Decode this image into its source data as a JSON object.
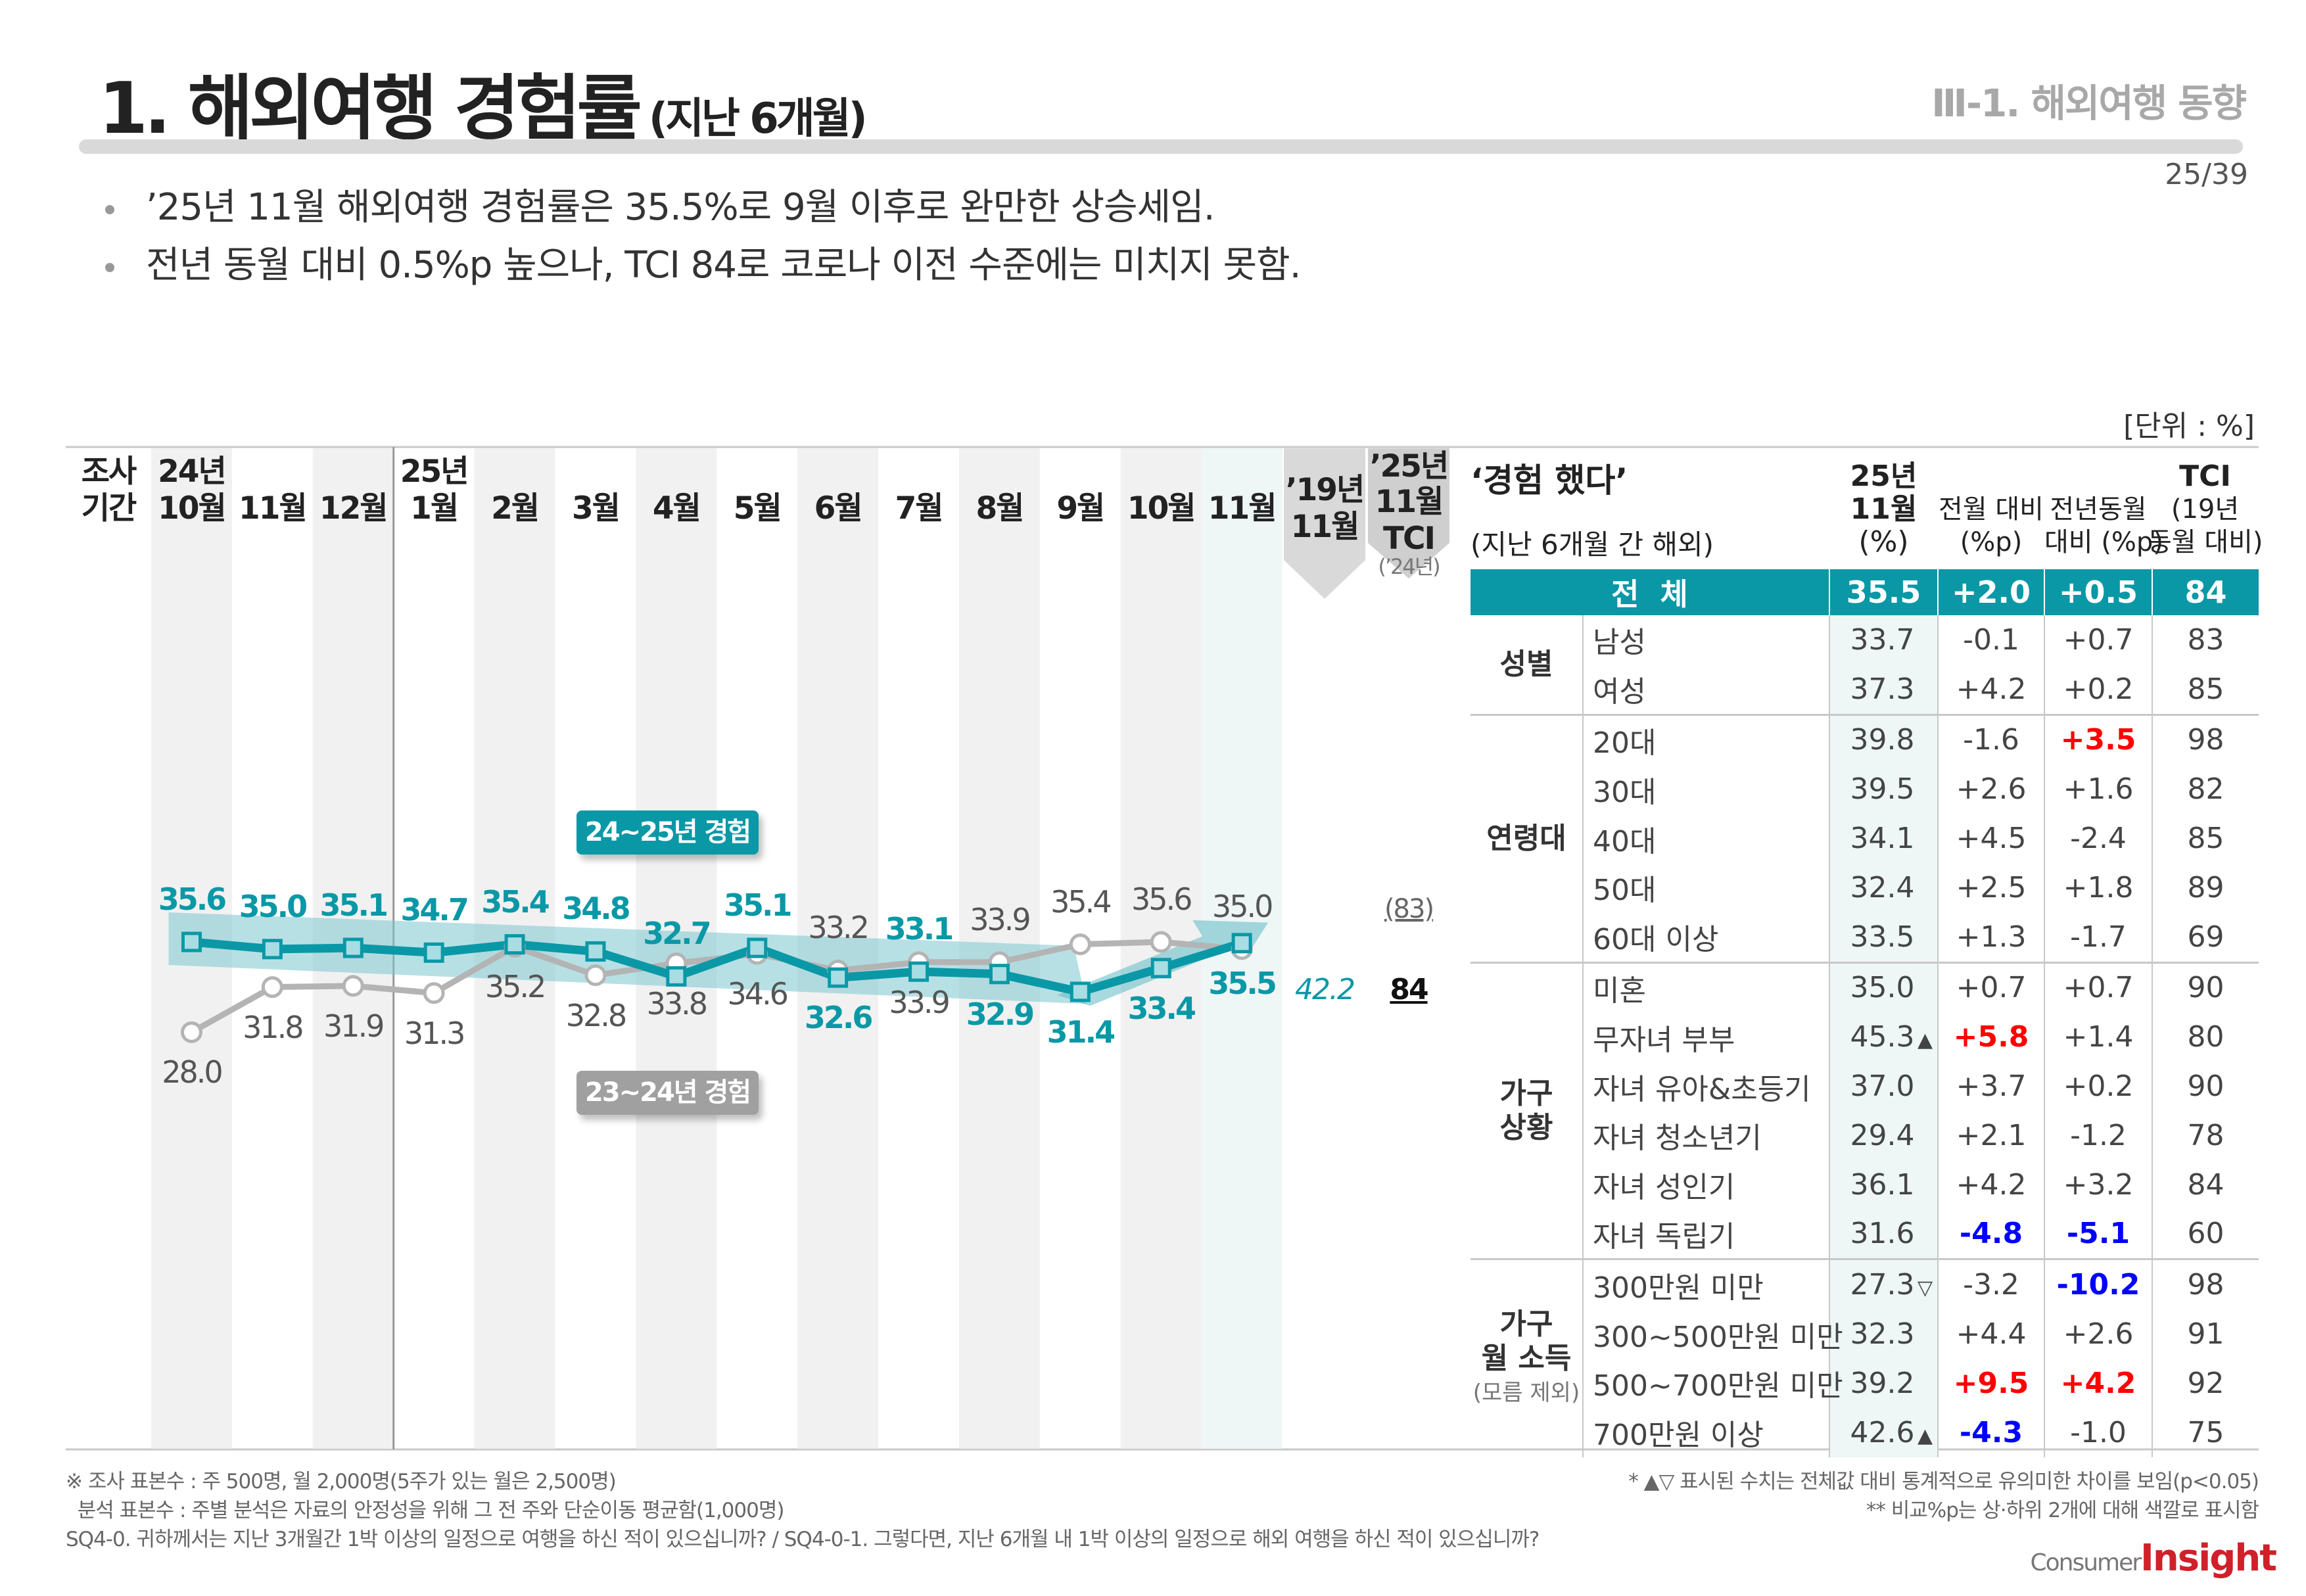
{
  "header": {
    "title": "1. 해외여행 경험률",
    "subtitle": "(지난 6개월)",
    "section": "Ⅲ-1. 해외여행 동향",
    "page": "25/39"
  },
  "bullets": [
    "’25년 11월 해외여행 경험률은 35.5%로 9월 이후로 완만한 상승세임.",
    "전년 동월 대비 0.5%p 높으나, TCI 84로 코로나 이전 수준에는 미치지 못함."
  ],
  "unit": "[단위 : %]",
  "chart_data": {
    "type": "line",
    "period_label": [
      "조사",
      "기간"
    ],
    "categories": [
      {
        "year": "24년",
        "month": "10월"
      },
      {
        "year": "",
        "month": "11월"
      },
      {
        "year": "",
        "month": "12월"
      },
      {
        "year": "25년",
        "month": "1월"
      },
      {
        "year": "",
        "month": "2월"
      },
      {
        "year": "",
        "month": "3월"
      },
      {
        "year": "",
        "month": "4월"
      },
      {
        "year": "",
        "month": "5월"
      },
      {
        "year": "",
        "month": "6월"
      },
      {
        "year": "",
        "month": "7월"
      },
      {
        "year": "",
        "month": "8월"
      },
      {
        "year": "",
        "month": "9월"
      },
      {
        "year": "",
        "month": "10월"
      },
      {
        "year": "",
        "month": "11월"
      }
    ],
    "series": [
      {
        "name": "24~25년 경험",
        "color": "#0a98a6",
        "values": [
          35.6,
          35.0,
          35.1,
          34.7,
          35.4,
          34.8,
          32.7,
          35.1,
          32.6,
          33.1,
          32.9,
          31.4,
          33.4,
          35.5
        ],
        "labels": [
          "35.6",
          "35.0",
          "35.1",
          "34.7",
          "35.4",
          "34.8",
          "32.7",
          "35.1",
          "32.6",
          "33.1",
          "32.9",
          "31.4",
          "33.4",
          "35.5"
        ]
      },
      {
        "name": "23~24년 경험",
        "color": "#b4b4b4",
        "values": [
          28.0,
          31.8,
          31.9,
          31.3,
          35.2,
          32.8,
          33.8,
          34.6,
          33.2,
          33.9,
          33.9,
          35.4,
          35.6,
          35.0
        ],
        "labels": [
          "28.0",
          "31.8",
          "31.9",
          "31.3",
          "35.2",
          "32.8",
          "33.8",
          "34.6",
          "33.2",
          "33.9",
          "33.9",
          "35.4",
          "35.6",
          "35.0"
        ]
      }
    ],
    "extra_columns": {
      "y19_nov": {
        "header": [
          "’19년",
          "11월"
        ],
        "value": "42.2"
      },
      "tci": {
        "header": [
          "’25년",
          "11월",
          "TCI"
        ],
        "sub": "(’24년)",
        "prev_value": "(83)",
        "value": "84"
      }
    }
  },
  "table": {
    "title": "‘경험 했다’",
    "subtitle": "(지난 6개월 간 해외)",
    "columns": {
      "pct": [
        "25년",
        "11월",
        "(%)"
      ],
      "mom": [
        "전월 대비",
        "(%p)"
      ],
      "yoy": [
        "전년동월",
        "대비 (%p)"
      ],
      "tci": [
        "TCI",
        "(19년",
        "동월 대비)"
      ]
    },
    "total": {
      "label": "전  체",
      "pct": "35.5",
      "mom": "+2.0",
      "yoy": "+0.5",
      "tci": "84"
    },
    "groups": [
      {
        "name": [
          "성별"
        ],
        "rows": [
          {
            "label": "남성",
            "pct": "33.7",
            "sig": "",
            "mom": "-0.1",
            "yoy": "+0.7",
            "tci": "83"
          },
          {
            "label": "여성",
            "pct": "37.3",
            "sig": "",
            "mom": "+4.2",
            "yoy": "+0.2",
            "tci": "85"
          }
        ]
      },
      {
        "name": [
          "연령대"
        ],
        "rows": [
          {
            "label": "20대",
            "pct": "39.8",
            "sig": "",
            "mom": "-1.6",
            "yoy": "+3.5",
            "tci": "98",
            "yoy_color": "#ff0000"
          },
          {
            "label": "30대",
            "pct": "39.5",
            "sig": "",
            "mom": "+2.6",
            "yoy": "+1.6",
            "tci": "82"
          },
          {
            "label": "40대",
            "pct": "34.1",
            "sig": "",
            "mom": "+4.5",
            "yoy": "-2.4",
            "tci": "85"
          },
          {
            "label": "50대",
            "pct": "32.4",
            "sig": "",
            "mom": "+2.5",
            "yoy": "+1.8",
            "tci": "89"
          },
          {
            "label": "60대 이상",
            "pct": "33.5",
            "sig": "",
            "mom": "+1.3",
            "yoy": "-1.7",
            "tci": "69"
          }
        ]
      },
      {
        "name": [
          "가구",
          "상황"
        ],
        "rows": [
          {
            "label": "미혼",
            "pct": "35.0",
            "sig": "",
            "mom": "+0.7",
            "yoy": "+0.7",
            "tci": "90"
          },
          {
            "label": "무자녀 부부",
            "pct": "45.3",
            "sig": "▲",
            "mom": "+5.8",
            "yoy": "+1.4",
            "tci": "80",
            "mom_color": "#ff0000"
          },
          {
            "label": "자녀 유아&초등기",
            "pct": "37.0",
            "sig": "",
            "mom": "+3.7",
            "yoy": "+0.2",
            "tci": "90"
          },
          {
            "label": "자녀 청소년기",
            "pct": "29.4",
            "sig": "",
            "mom": "+2.1",
            "yoy": "-1.2",
            "tci": "78"
          },
          {
            "label": "자녀 성인기",
            "pct": "36.1",
            "sig": "",
            "mom": "+4.2",
            "yoy": "+3.2",
            "tci": "84"
          },
          {
            "label": "자녀 독립기",
            "pct": "31.6",
            "sig": "",
            "mom": "-4.8",
            "yoy": "-5.1",
            "tci": "60",
            "mom_color": "#0000ff",
            "yoy_color": "#0000ff"
          }
        ]
      },
      {
        "name": [
          "가구",
          "월 소득"
        ],
        "note": "(모름 제외)",
        "rows": [
          {
            "label": "300만원 미만",
            "pct": "27.3",
            "sig": "▽",
            "mom": "-3.2",
            "yoy": "-10.2",
            "tci": "98",
            "yoy_color": "#0000ff"
          },
          {
            "label": "300~500만원 미만",
            "pct": "32.3",
            "sig": "",
            "mom": "+4.4",
            "yoy": "+2.6",
            "tci": "91"
          },
          {
            "label": "500~700만원 미만",
            "pct": "39.2",
            "sig": "",
            "mom": "+9.5",
            "yoy": "+4.2",
            "tci": "92",
            "mom_color": "#ff0000",
            "yoy_color": "#ff0000"
          },
          {
            "label": "700만원 이상",
            "pct": "42.6",
            "sig": "▲",
            "mom": "-4.3",
            "yoy": "-1.0",
            "tci": "75",
            "mom_color": "#0000ff"
          }
        ]
      }
    ]
  },
  "footer": {
    "left": [
      "※ 조사 표본수 : 주 500명, 월 2,000명(5주가 있는 월은 2,500명)",
      "  분석 표본수 : 주별 분석은 자료의 안정성을 위해 그 전 주와 단순이동 평균함(1,000명)",
      "SQ4-0. 귀하께서는 지난 3개월간 1박 이상의 일정으로 여행을 하신 적이 있으십니까? / SQ4-0-1. 그렇다면, 지난 6개월 내 1박 이상의 일정으로 해외 여행을 하신 적이 있으십니까?"
    ],
    "right": [
      "* ▲▽ 표시된 수치는 전체값 대비 통계적으로 유의미한 차이를 보임(p<0.05)",
      "** 비교%p는 상·하위 2개에 대해 색깔로 표시함"
    ],
    "logo": [
      "Consumer",
      "Insight"
    ]
  },
  "colors": {
    "accent": "#0a98a6",
    "gray_series": "#b4b4b4",
    "up": "#ff0000",
    "down": "#0000ff"
  }
}
